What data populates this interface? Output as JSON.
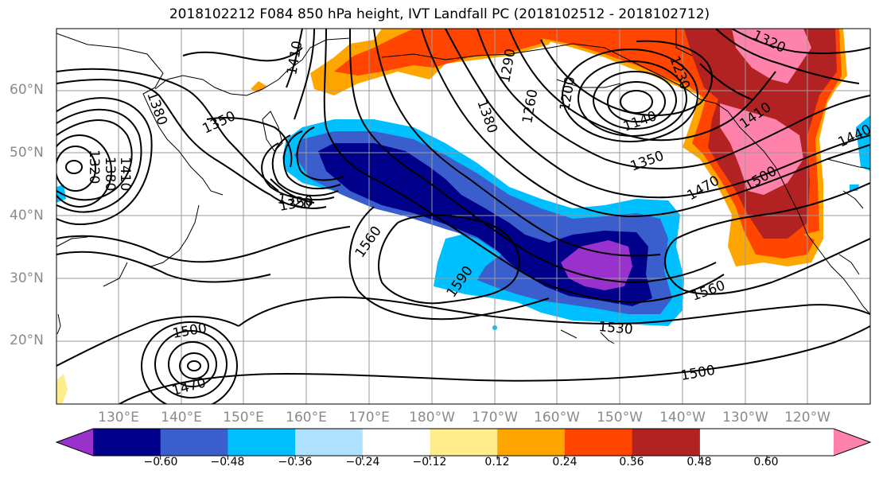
{
  "title": "2018102212 F084 850 hPa height, IVT Landfall PC (2018102512 - 2018102712)",
  "lat_labels": [
    "60°N",
    "50°N",
    "40°N",
    "30°N",
    "20°N"
  ],
  "lon_labels": [
    "130°E",
    "140°E",
    "150°E",
    "160°E",
    "170°E",
    "180°W",
    "170°W",
    "160°W",
    "150°W",
    "140°W",
    "130°W",
    "120°W"
  ],
  "colorbar": {
    "ticks": [
      "−0.60",
      "−0.48",
      "−0.36",
      "−0.24",
      "−0.12",
      "0.12",
      "0.24",
      "0.36",
      "0.48",
      "0.60"
    ],
    "colors": [
      "#9932CC",
      "#00008B",
      "#3A5FCD",
      "#00BFFF",
      "#B0E2FF",
      "#FFFFFF",
      "#FFEC8B",
      "#FFA500",
      "#FF4500",
      "#B22222",
      "#FF82AB"
    ]
  },
  "contour_labels": [
    "1380",
    "1410",
    "1350",
    "1320",
    "1290",
    "1260",
    "1200",
    "1230",
    "1140",
    "1380",
    "1350",
    "1470",
    "1410",
    "1500",
    "1440",
    "1320",
    "1350",
    "1320",
    "1380",
    "1410",
    "1560",
    "1590",
    "1500",
    "1470",
    "1530",
    "1560",
    "1500"
  ]
}
